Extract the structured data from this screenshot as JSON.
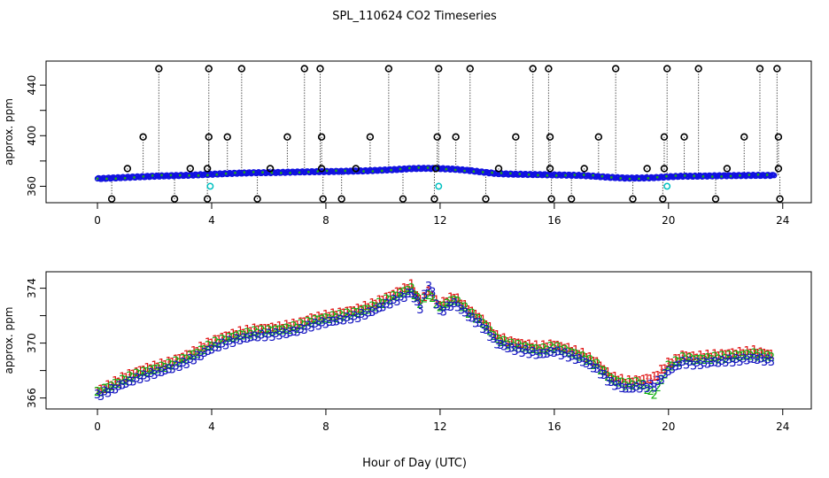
{
  "figure_title": "SPL_110624  CO2 Timeseries",
  "x_axis_label": "Hour of Day (UTC)",
  "chart_data": [
    {
      "type": "scatter",
      "title": "",
      "xlabel": "",
      "ylabel": "approx. ppm",
      "xlim": [
        -1.8,
        25.0
      ],
      "ylim": [
        347,
        459
      ],
      "xticks": [
        0,
        4,
        8,
        12,
        16,
        20,
        24
      ],
      "yticks": [
        360,
        400,
        440
      ],
      "grid": false,
      "series": [
        {
          "color": "#1010e0",
          "marker": "circle",
          "baseline_points": [
            [
              0.0,
              366
            ],
            [
              0.5,
              366.5
            ],
            [
              1.0,
              367
            ],
            [
              1.5,
              367.5
            ],
            [
              2.0,
              368
            ],
            [
              2.5,
              368.3
            ],
            [
              3.0,
              368.6
            ],
            [
              3.5,
              369
            ],
            [
              4.0,
              369.5
            ],
            [
              4.5,
              370
            ],
            [
              5.0,
              370.4
            ],
            [
              5.5,
              370.7
            ],
            [
              6.0,
              370.8
            ],
            [
              6.5,
              371
            ],
            [
              7.0,
              371.3
            ],
            [
              7.5,
              371.5
            ],
            [
              8.0,
              371.6
            ],
            [
              8.5,
              371.8
            ],
            [
              9.0,
              372
            ],
            [
              9.5,
              372.3
            ],
            [
              10.0,
              372.8
            ],
            [
              10.5,
              373.3
            ],
            [
              11.0,
              374
            ],
            [
              11.5,
              374.2
            ],
            [
              12.0,
              374
            ],
            [
              12.5,
              373.5
            ],
            [
              13.0,
              372.5
            ],
            [
              13.5,
              371.2
            ],
            [
              14.0,
              370
            ],
            [
              14.5,
              369.6
            ],
            [
              15.0,
              369.4
            ],
            [
              15.5,
              369.2
            ],
            [
              16.0,
              369
            ],
            [
              16.5,
              368.8
            ],
            [
              17.0,
              368.5
            ],
            [
              17.5,
              367.8
            ],
            [
              18.0,
              367
            ],
            [
              18.5,
              366.5
            ],
            [
              19.0,
              366.5
            ],
            [
              19.5,
              366.8
            ],
            [
              20.0,
              367.5
            ],
            [
              20.5,
              368
            ],
            [
              21.0,
              368
            ],
            [
              21.5,
              368.2
            ],
            [
              22.0,
              368.4
            ],
            [
              22.5,
              368.5
            ],
            [
              23.0,
              368.6
            ],
            [
              23.7,
              368.6
            ]
          ]
        },
        {
          "color": "#00c0c0",
          "marker": "circle",
          "points": [
            [
              3.95,
              360
            ],
            [
              11.95,
              360
            ],
            [
              19.95,
              360
            ]
          ]
        },
        {
          "color": "#000000",
          "marker": "circle",
          "points": [
            [
              2.15,
              453
            ],
            [
              3.9,
              453
            ],
            [
              5.05,
              453
            ],
            [
              7.25,
              453
            ],
            [
              7.8,
              453
            ],
            [
              10.2,
              453
            ],
            [
              11.95,
              453
            ],
            [
              13.05,
              453
            ],
            [
              15.25,
              453
            ],
            [
              15.8,
              453
            ],
            [
              18.15,
              453
            ],
            [
              19.95,
              453
            ],
            [
              21.05,
              453
            ],
            [
              23.2,
              453
            ],
            [
              23.8,
              453
            ],
            [
              1.6,
              399
            ],
            [
              3.9,
              399
            ],
            [
              4.55,
              399
            ],
            [
              6.65,
              399
            ],
            [
              7.85,
              399
            ],
            [
              9.55,
              399
            ],
            [
              11.9,
              399
            ],
            [
              12.55,
              399
            ],
            [
              14.65,
              399
            ],
            [
              15.85,
              399
            ],
            [
              17.55,
              399
            ],
            [
              19.85,
              399
            ],
            [
              20.55,
              399
            ],
            [
              22.65,
              399
            ],
            [
              23.85,
              399
            ],
            [
              1.05,
              374
            ],
            [
              3.25,
              374
            ],
            [
              3.85,
              374
            ],
            [
              6.05,
              374
            ],
            [
              7.85,
              374
            ],
            [
              9.05,
              374
            ],
            [
              11.85,
              374
            ],
            [
              14.05,
              374
            ],
            [
              15.85,
              374
            ],
            [
              17.05,
              374
            ],
            [
              19.25,
              374
            ],
            [
              19.85,
              374
            ],
            [
              22.05,
              374
            ],
            [
              23.85,
              374
            ],
            [
              0.5,
              350
            ],
            [
              2.7,
              350
            ],
            [
              3.85,
              350
            ],
            [
              5.6,
              350
            ],
            [
              7.9,
              350
            ],
            [
              8.55,
              350
            ],
            [
              10.7,
              350
            ],
            [
              11.8,
              350
            ],
            [
              13.6,
              350
            ],
            [
              15.9,
              350
            ],
            [
              16.6,
              350
            ],
            [
              18.75,
              350
            ],
            [
              19.8,
              350
            ],
            [
              21.65,
              350
            ],
            [
              23.9,
              350
            ]
          ]
        }
      ]
    },
    {
      "type": "scatter",
      "title": "",
      "xlabel": "",
      "ylabel": "approx. ppm",
      "xlim": [
        -1.8,
        25.0
      ],
      "ylim": [
        365.2,
        375.2
      ],
      "xticks": [
        0,
        4,
        8,
        12,
        16,
        20,
        24
      ],
      "yticks": [
        366,
        370,
        374
      ],
      "grid": false,
      "series": [
        {
          "color": "#e01010",
          "marker": "1",
          "baseline_points": [
            [
              0.0,
              366.5
            ],
            [
              0.5,
              367
            ],
            [
              1.0,
              367.6
            ],
            [
              1.5,
              368
            ],
            [
              2.0,
              368.3
            ],
            [
              2.5,
              368.6
            ],
            [
              3.0,
              369
            ],
            [
              3.5,
              369.5
            ],
            [
              4.0,
              370.1
            ],
            [
              4.5,
              370.5
            ],
            [
              5.0,
              370.8
            ],
            [
              5.5,
              371
            ],
            [
              6.0,
              371.1
            ],
            [
              6.5,
              371.2
            ],
            [
              7.0,
              371.4
            ],
            [
              7.5,
              371.8
            ],
            [
              8.0,
              372
            ],
            [
              8.5,
              372.2
            ],
            [
              9.0,
              372.4
            ],
            [
              9.5,
              372.7
            ],
            [
              10.0,
              373.2
            ],
            [
              10.5,
              373.7
            ],
            [
              11.0,
              374.2
            ],
            [
              11.3,
              373.1
            ],
            [
              11.6,
              373.8
            ],
            [
              12.0,
              372.8
            ],
            [
              12.5,
              373.4
            ],
            [
              13.0,
              372.5
            ],
            [
              13.5,
              371.7
            ],
            [
              14.0,
              370.5
            ],
            [
              14.5,
              370.1
            ],
            [
              15.0,
              369.9
            ],
            [
              15.5,
              369.7
            ],
            [
              16.0,
              369.9
            ],
            [
              16.5,
              369.6
            ],
            [
              17.0,
              369.2
            ],
            [
              17.5,
              368.6
            ],
            [
              18.0,
              367.6
            ],
            [
              18.5,
              367.2
            ],
            [
              19.0,
              367.3
            ],
            [
              19.5,
              367.5
            ],
            [
              20.0,
              368.5
            ],
            [
              20.5,
              369.1
            ],
            [
              21.0,
              369
            ],
            [
              21.5,
              369.1
            ],
            [
              22.0,
              369.2
            ],
            [
              22.5,
              369.3
            ],
            [
              23.0,
              369.4
            ],
            [
              23.6,
              369.2
            ]
          ]
        },
        {
          "color": "#10b010",
          "marker": "2",
          "baseline_points": [
            [
              0.0,
              366.4
            ],
            [
              0.5,
              366.9
            ],
            [
              1.0,
              367.4
            ],
            [
              1.5,
              367.8
            ],
            [
              2.0,
              368.1
            ],
            [
              2.5,
              368.4
            ],
            [
              3.0,
              368.8
            ],
            [
              3.5,
              369.3
            ],
            [
              4.0,
              369.9
            ],
            [
              4.5,
              370.3
            ],
            [
              5.0,
              370.6
            ],
            [
              5.5,
              370.8
            ],
            [
              6.0,
              370.9
            ],
            [
              6.5,
              371
            ],
            [
              7.0,
              371.2
            ],
            [
              7.5,
              371.6
            ],
            [
              8.0,
              371.8
            ],
            [
              8.5,
              372
            ],
            [
              9.0,
              372.2
            ],
            [
              9.5,
              372.5
            ],
            [
              10.0,
              373
            ],
            [
              10.5,
              373.5
            ],
            [
              11.0,
              374
            ],
            [
              11.3,
              372.9
            ],
            [
              11.6,
              373.6
            ],
            [
              12.0,
              372.6
            ],
            [
              12.5,
              373.2
            ],
            [
              13.0,
              372.3
            ],
            [
              13.5,
              371.5
            ],
            [
              14.0,
              370.3
            ],
            [
              14.5,
              369.9
            ],
            [
              15.0,
              369.7
            ],
            [
              15.5,
              369.5
            ],
            [
              16.0,
              369.7
            ],
            [
              16.5,
              369.4
            ],
            [
              17.0,
              369
            ],
            [
              17.5,
              368.4
            ],
            [
              18.0,
              367.4
            ],
            [
              18.5,
              367
            ],
            [
              19.0,
              367.1
            ],
            [
              19.5,
              366.3
            ],
            [
              20.0,
              368.3
            ],
            [
              20.5,
              368.9
            ],
            [
              21.0,
              368.8
            ],
            [
              21.5,
              368.9
            ],
            [
              22.0,
              369
            ],
            [
              22.5,
              369.1
            ],
            [
              23.0,
              369.2
            ],
            [
              23.6,
              369
            ]
          ]
        },
        {
          "color": "#1010c0",
          "marker": "3",
          "baseline_points": [
            [
              0.0,
              366.2
            ],
            [
              0.5,
              366.6
            ],
            [
              1.0,
              367.1
            ],
            [
              1.5,
              367.5
            ],
            [
              2.0,
              367.8
            ],
            [
              2.5,
              368.1
            ],
            [
              3.0,
              368.5
            ],
            [
              3.5,
              369
            ],
            [
              4.0,
              369.6
            ],
            [
              4.5,
              370
            ],
            [
              5.0,
              370.3
            ],
            [
              5.5,
              370.5
            ],
            [
              6.0,
              370.6
            ],
            [
              6.5,
              370.7
            ],
            [
              7.0,
              370.9
            ],
            [
              7.5,
              371.3
            ],
            [
              8.0,
              371.5
            ],
            [
              8.5,
              371.7
            ],
            [
              9.0,
              371.9
            ],
            [
              9.5,
              372.2
            ],
            [
              10.0,
              372.7
            ],
            [
              10.5,
              373.2
            ],
            [
              11.0,
              373.7
            ],
            [
              11.3,
              372.6
            ],
            [
              11.6,
              374.3
            ],
            [
              12.0,
              372.3
            ],
            [
              12.5,
              372.9
            ],
            [
              13.0,
              372
            ],
            [
              13.5,
              371.2
            ],
            [
              14.0,
              370
            ],
            [
              14.5,
              369.6
            ],
            [
              15.0,
              369.4
            ],
            [
              15.5,
              369.2
            ],
            [
              16.0,
              369.4
            ],
            [
              16.5,
              369.1
            ],
            [
              17.0,
              368.7
            ],
            [
              17.5,
              368.1
            ],
            [
              18.0,
              367.1
            ],
            [
              18.5,
              366.7
            ],
            [
              19.0,
              366.8
            ],
            [
              19.5,
              366.9
            ],
            [
              20.0,
              368
            ],
            [
              20.5,
              368.6
            ],
            [
              21.0,
              368.5
            ],
            [
              21.5,
              368.6
            ],
            [
              22.0,
              368.7
            ],
            [
              22.5,
              368.8
            ],
            [
              23.0,
              368.9
            ],
            [
              23.6,
              368.7
            ]
          ]
        }
      ]
    }
  ]
}
